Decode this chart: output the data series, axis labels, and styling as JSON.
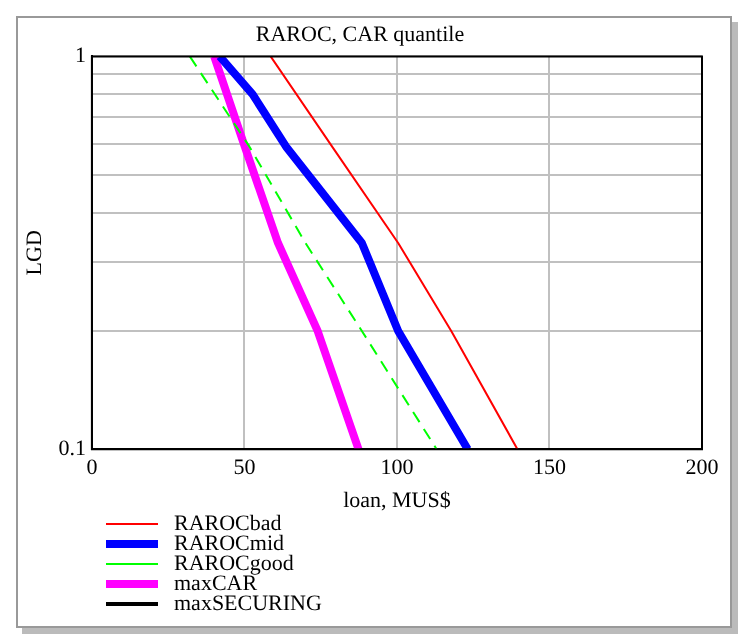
{
  "chart_data": {
    "type": "line",
    "title": "RAROC, CAR quantile",
    "xlabel": "loan, MUS$",
    "ylabel": "LGD",
    "log": "y",
    "grid": true,
    "legend": "bottom",
    "marker": "none",
    "xlim": [
      0,
      200
    ],
    "xticks": [
      0,
      50,
      100,
      150,
      200
    ],
    "ylim": [
      0.1,
      1
    ],
    "yticks": [
      0.1,
      {
        "value": 0.2,
        "label": null
      },
      {
        "value": 0.3,
        "label": null
      },
      {
        "value": 0.4,
        "label": null
      },
      {
        "value": 0.5,
        "label": null
      },
      {
        "value": 0.6,
        "label": null
      },
      {
        "value": 0.7,
        "label": null
      },
      {
        "value": 0.8,
        "label": null
      },
      {
        "value": 0.9,
        "label": null
      },
      1
    ],
    "series": [
      {
        "name": "RAROCbad",
        "color": "#ff0000",
        "line_style": "solid",
        "x": [
          58.6,
          78.7,
          100.4,
          117.8,
          139.5
        ],
        "values": [
          1,
          0.59,
          0.335,
          0.2,
          0.1
        ]
      },
      {
        "name": "RAROCmid",
        "color": "#0000ff",
        "line_style": "solid",
        "x": [
          41.9,
          52.7,
          63.6,
          88.5,
          100.4,
          123.2
        ],
        "values": [
          1,
          0.8,
          0.59,
          0.335,
          0.2,
          0.1
        ]
      },
      {
        "name": "RAROCgood",
        "color": "#00ff00",
        "line_style": "dashed",
        "x": [
          32.1,
          51.6,
          70,
          88.5,
          113
        ],
        "values": [
          1,
          0.59,
          0.335,
          0.2,
          0.1
        ]
      },
      {
        "name": "maxCAR",
        "color": "#ff00ff",
        "line_style": "solid",
        "x": [
          40.1,
          50.1,
          61,
          74,
          87.4
        ],
        "values": [
          1,
          0.59,
          0.335,
          0.2,
          0.1
        ]
      },
      {
        "name": "maxSECURING",
        "color": "#000000",
        "line_style": "solid"
      }
    ]
  }
}
